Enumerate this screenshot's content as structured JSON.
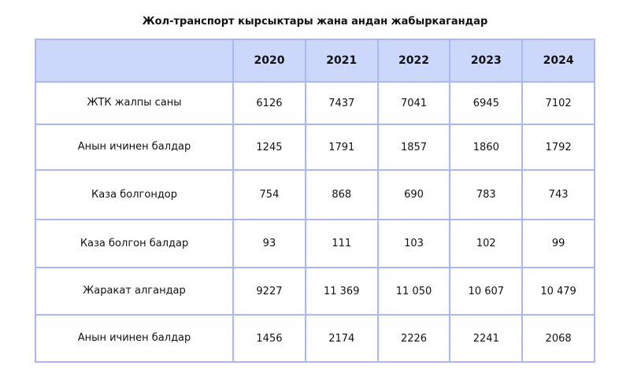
{
  "chart_data": {
    "type": "table",
    "title": "Жол-транспорт кырсыктары жана андан жабыркагандар",
    "columns": [
      "",
      "2020",
      "2021",
      "2022",
      "2023",
      "2024"
    ],
    "rows": [
      {
        "label": "ЖТК жалпы саны",
        "values": [
          "6126",
          "7437",
          "7041",
          "6945",
          "7102"
        ]
      },
      {
        "label": "Анын ичинен балдар",
        "values": [
          "1245",
          "1791",
          "1857",
          "1860",
          "1792"
        ]
      },
      {
        "label": "Каза болгондор",
        "values": [
          "754",
          "868",
          "690",
          "783",
          "743"
        ]
      },
      {
        "label": "Каза болгон балдар",
        "values": [
          "93",
          "111",
          "103",
          "102",
          "99"
        ]
      },
      {
        "label": "Жаракат алгандар",
        "values": [
          "9227",
          "11 369",
          "11 050",
          "10 607",
          "10 479"
        ]
      },
      {
        "label": "Анын ичинен балдар",
        "values": [
          "1456",
          "2174",
          "2226",
          "2241",
          "2068"
        ]
      }
    ],
    "colors": {
      "header_bg": "#ccd7fc",
      "border": "#a9b8f2"
    }
  }
}
